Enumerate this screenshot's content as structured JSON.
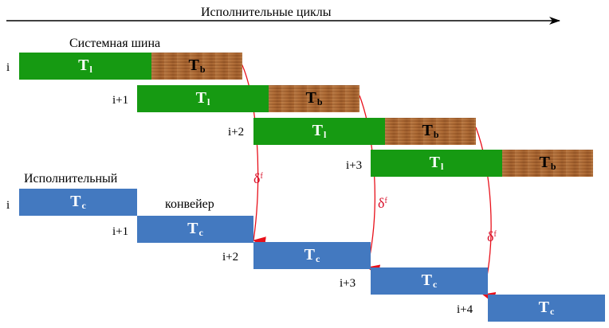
{
  "header": {
    "title": "Исполнительные циклы"
  },
  "labels": {
    "bus": "Системная шина",
    "pipeline_line1": "Исполнительный",
    "pipeline_line2": "конвейер"
  },
  "bus_rows": [
    {
      "index": "i",
      "t1": "T",
      "t1_sub": "l",
      "tb": "T",
      "tb_sub": "b"
    },
    {
      "index": "i+1",
      "t1": "T",
      "t1_sub": "l",
      "tb": "T",
      "tb_sub": "b"
    },
    {
      "index": "i+2",
      "t1": "T",
      "t1_sub": "l",
      "tb": "T",
      "tb_sub": "b"
    },
    {
      "index": "i+3",
      "t1": "T",
      "t1_sub": "l",
      "tb": "T",
      "tb_sub": "b"
    }
  ],
  "exec_rows": [
    {
      "index": "i",
      "tc": "T",
      "tc_sub": "c"
    },
    {
      "index": "i+1",
      "tc": "T",
      "tc_sub": "c"
    },
    {
      "index": "i+2",
      "tc": "T",
      "tc_sub": "c"
    },
    {
      "index": "i+3",
      "tc": "T",
      "tc_sub": "c"
    },
    {
      "index": "i+4",
      "tc": "T",
      "tc_sub": "c"
    }
  ],
  "deltas": [
    {
      "symbol": "δ",
      "sup": "f"
    },
    {
      "symbol": "δ",
      "sup": "f"
    },
    {
      "symbol": "δ",
      "sup": "f"
    }
  ],
  "colors": {
    "bus_phase": "#169a12",
    "transfer_phase": "#b06a33",
    "exec_phase": "#4379c0",
    "arrow": "#e8101a"
  }
}
